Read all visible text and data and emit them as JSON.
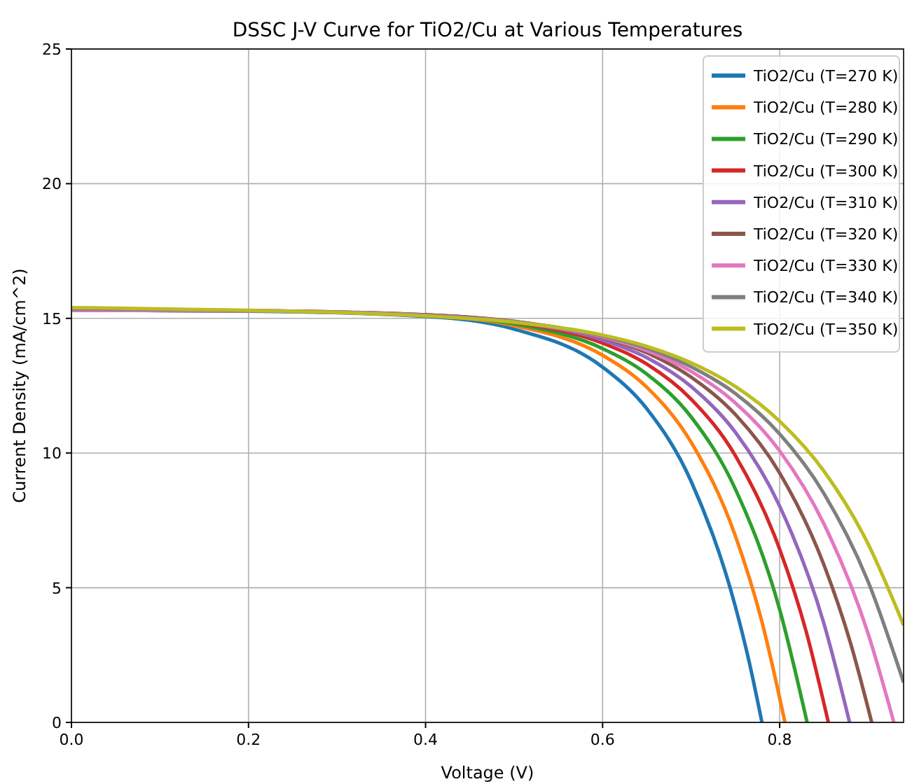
{
  "chart_data": {
    "type": "line",
    "title": "DSSC J-V Curve for TiO2/Cu at Various Temperatures",
    "xlabel": "Voltage (V)",
    "ylabel": "Current Density (mA/cm^2)",
    "xlim": [
      0,
      0.94
    ],
    "ylim": [
      0,
      25
    ],
    "xticks": [
      {
        "value": 0,
        "label": "0.0"
      },
      {
        "value": 0.2,
        "label": "0.2"
      },
      {
        "value": 0.4,
        "label": "0.4"
      },
      {
        "value": 0.6,
        "label": "0.6"
      },
      {
        "value": 0.8,
        "label": "0.8"
      }
    ],
    "yticks": [
      0,
      5,
      10,
      15,
      20,
      25
    ],
    "grid": true,
    "legend": "top right",
    "marker": "none",
    "line_style": "solid",
    "series": [
      {
        "name": "TiO2/Cu (T=270 K)",
        "color": "#1f77b4",
        "x": [
          0,
          0.2,
          0.4,
          0.5,
          0.6,
          0.65,
          0.7,
          0.75,
          0.765,
          0.78
        ],
        "values": [
          15.3,
          15.27,
          15.07,
          14.6,
          13.19,
          11.64,
          8.95,
          4.3,
          2.33,
          0
        ]
      },
      {
        "name": "TiO2/Cu (T=280 K)",
        "color": "#ff7f0e",
        "x": [
          0.4,
          0.5,
          0.6,
          0.65,
          0.7,
          0.75,
          0.78,
          0.806
        ],
        "values": [
          15.11,
          14.73,
          13.63,
          12.44,
          10.4,
          6.92,
          3.73,
          0
        ]
      },
      {
        "name": "TiO2/Cu (T=290 K)",
        "color": "#2ca02c",
        "x": [
          0.4,
          0.5,
          0.6,
          0.65,
          0.7,
          0.75,
          0.8,
          0.831
        ],
        "values": [
          15.12,
          14.79,
          13.88,
          12.93,
          11.34,
          8.66,
          4.19,
          0
        ]
      },
      {
        "name": "TiO2/Cu (T=300 K)",
        "color": "#d62728",
        "x": [
          0.4,
          0.5,
          0.6,
          0.65,
          0.7,
          0.75,
          0.8,
          0.83,
          0.855
        ],
        "values": [
          15.13,
          14.85,
          14.08,
          13.3,
          12.0,
          9.9,
          6.43,
          3.37,
          0
        ]
      },
      {
        "name": "TiO2/Cu (T=310 K)",
        "color": "#9467bd",
        "x": [
          0,
          0.2,
          0.4,
          0.5,
          0.6,
          0.65,
          0.7,
          0.75,
          0.8,
          0.85,
          0.879
        ],
        "values": [
          15.3,
          15.28,
          15.13,
          14.87,
          14.2,
          13.54,
          12.47,
          10.77,
          8.03,
          3.67,
          0
        ]
      },
      {
        "name": "TiO2/Cu (T=320 K)",
        "color": "#8c564b",
        "x": [
          0,
          0.2,
          0.4,
          0.5,
          0.6,
          0.65,
          0.7,
          0.75,
          0.8,
          0.85,
          0.88,
          0.904
        ],
        "values": [
          15.3,
          15.28,
          15.13,
          14.89,
          14.29,
          13.72,
          12.82,
          11.43,
          9.26,
          5.85,
          2.95,
          0
        ]
      },
      {
        "name": "TiO2/Cu (T=330 K)",
        "color": "#e377c2",
        "x": [
          0,
          0.2,
          0.4,
          0.5,
          0.6,
          0.65,
          0.7,
          0.75,
          0.8,
          0.85,
          0.9,
          0.929
        ],
        "values": [
          15.3,
          15.28,
          15.11,
          14.87,
          14.31,
          13.8,
          13.03,
          11.86,
          10.08,
          7.37,
          3.29,
          0
        ]
      },
      {
        "name": "TiO2/Cu (T=340 K)",
        "color": "#7f7f7f",
        "x": [
          0,
          0.2,
          0.4,
          0.5,
          0.6,
          0.65,
          0.7,
          0.75,
          0.8,
          0.85,
          0.9,
          0.94
        ],
        "values": [
          15.35,
          15.29,
          15.1,
          14.87,
          14.35,
          13.89,
          13.2,
          12.21,
          10.71,
          8.5,
          5.22,
          1.48
        ]
      },
      {
        "name": "TiO2/Cu (T=350 K)",
        "color": "#bcbd22",
        "x": [
          0,
          0.2,
          0.4,
          0.5,
          0.6,
          0.65,
          0.7,
          0.75,
          0.8,
          0.85,
          0.9,
          0.94
        ],
        "values": [
          15.4,
          15.3,
          15.09,
          14.86,
          14.38,
          13.96,
          13.35,
          12.47,
          11.18,
          9.33,
          6.62,
          3.61
        ]
      }
    ]
  }
}
